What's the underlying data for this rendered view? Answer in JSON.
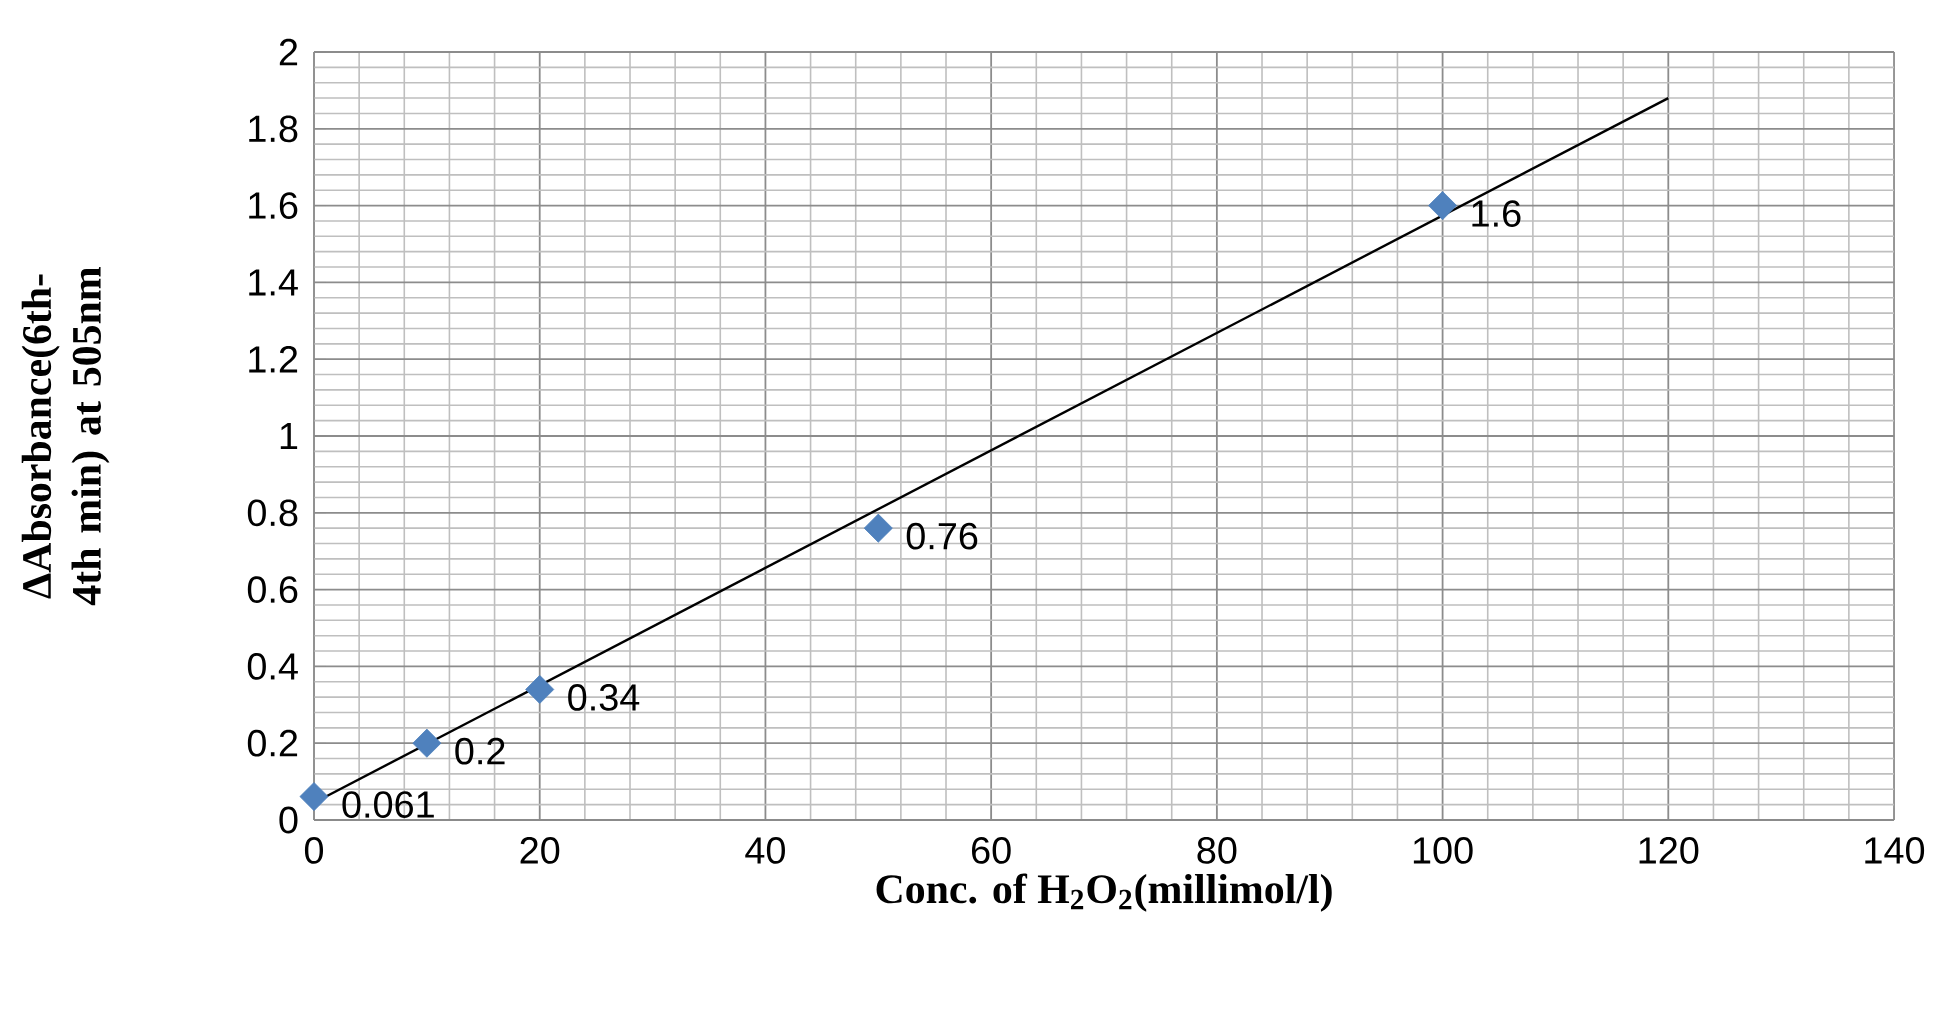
{
  "chart_data": {
    "type": "scatter",
    "xlabel": "Conc. of H$_{2}$O$_{2}$(millimol/l)",
    "ylabel": "ΔAbsorbance(6th-4th min) at 505nm",
    "xlim": [
      0,
      140
    ],
    "ylim": [
      0,
      2
    ],
    "xticks": [
      0,
      20,
      40,
      60,
      80,
      100,
      120,
      140
    ],
    "yticks": [
      0,
      0.2,
      0.4,
      0.6,
      0.8,
      1,
      1.2,
      1.4,
      1.6,
      1.8,
      2
    ],
    "grid": true,
    "marker": "diamond",
    "series": [
      {
        "color": "#4f81bd",
        "x": [
          0,
          10,
          20,
          50,
          100
        ],
        "values": [
          0.061,
          0.2,
          0.34,
          0.76,
          1.6
        ],
        "value_labels": [
          "0.061",
          "0.2",
          "0.34",
          "0.76",
          "1.6"
        ]
      },
      {
        "type": "line",
        "color": "#000000",
        "marker": "none",
        "x": [
          0,
          120
        ],
        "values": [
          0.045,
          1.88
        ]
      }
    ]
  }
}
